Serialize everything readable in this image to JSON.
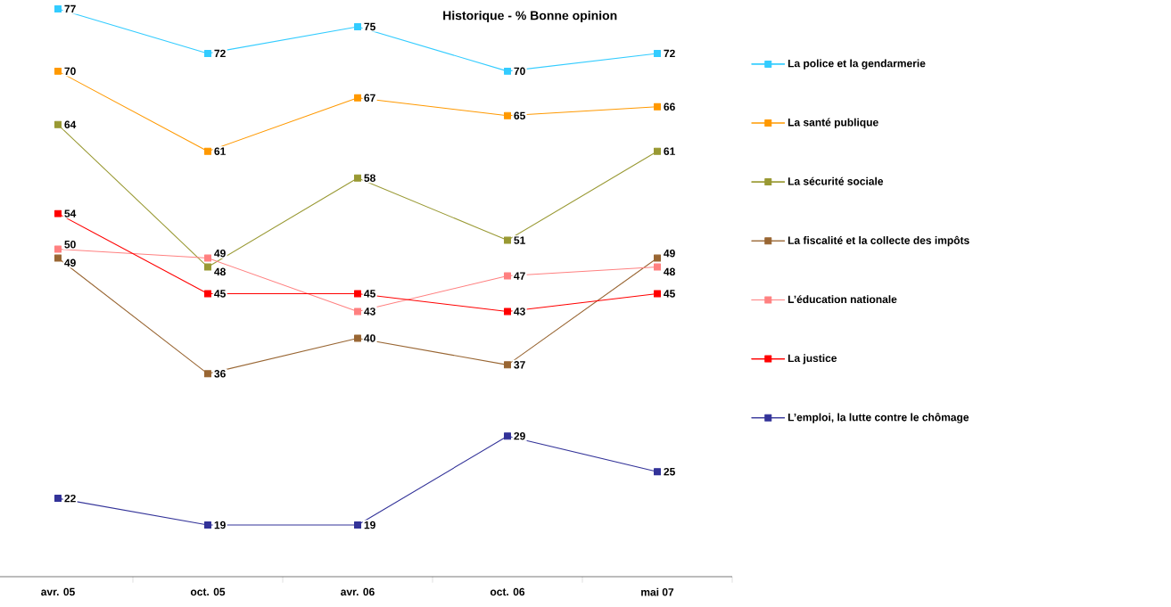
{
  "chart_data": {
    "type": "line",
    "title": "Historique - % Bonne opinion",
    "categories": [
      "avr. 05",
      "oct. 05",
      "avr. 06",
      "oct. 06",
      "mai 07"
    ],
    "series": [
      {
        "name": "La police et la gendarmerie",
        "color": "#33ccff",
        "values": [
          77,
          72,
          75,
          70,
          72
        ]
      },
      {
        "name": "La santé publique",
        "color": "#ff9900",
        "values": [
          70,
          61,
          67,
          65,
          66
        ]
      },
      {
        "name": "La sécurité sociale",
        "color": "#999933",
        "values": [
          64,
          48,
          58,
          51,
          61
        ]
      },
      {
        "name": "La fiscalité et la collecte des impôts",
        "color": "#996633",
        "values": [
          49,
          36,
          40,
          37,
          49
        ]
      },
      {
        "name": "L’éducation nationale",
        "color": "#ff8080",
        "values": [
          50,
          49,
          43,
          47,
          48
        ]
      },
      {
        "name": "La justice",
        "color": "#ff0000",
        "values": [
          54,
          45,
          45,
          43,
          45
        ]
      },
      {
        "name": "L’emploi, la lutte contre le chômage",
        "color": "#333399",
        "values": [
          22,
          19,
          19,
          29,
          25
        ]
      }
    ],
    "tick_labels": "x",
    "data_labels": true,
    "legend": "right",
    "marker": "square",
    "line_style": "solid",
    "grid": false
  }
}
